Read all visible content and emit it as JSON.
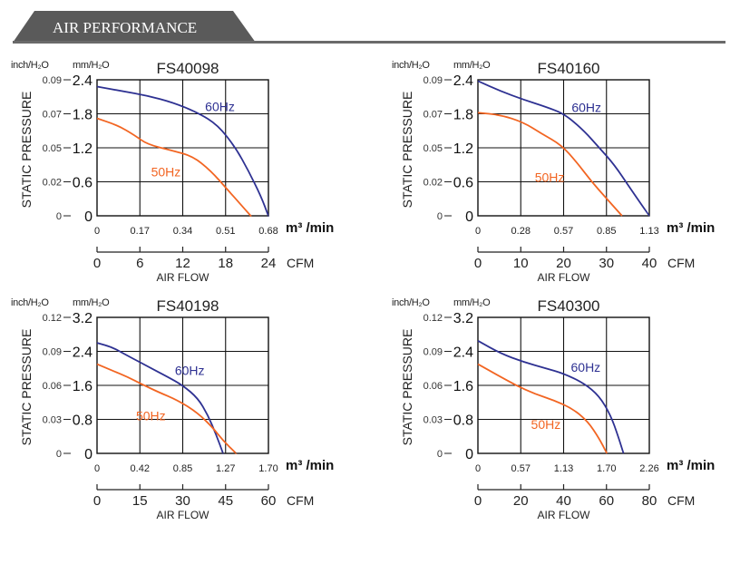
{
  "header": {
    "title": "AIR PERFORMANCE",
    "tab_color": "#5a5a5a",
    "rule_color": "#6a6a6a"
  },
  "labels": {
    "y_unit_inch": "inch/H₂O",
    "y_unit_mm": "mm/H₂O",
    "y_axis": "STATIC PRESSURE",
    "x_unit_m3": "m³ /min",
    "x_unit_cfm": "CFM",
    "x_axis": "AIR FLOW"
  },
  "colors": {
    "60Hz": "#2e3192",
    "50Hz": "#f26522",
    "grid": "#111111"
  },
  "chart_data": [
    {
      "type": "line",
      "title": "FS40098",
      "ylabel": "STATIC PRESSURE",
      "xlabel": "AIR FLOW",
      "y_ticks_mm": [
        "0",
        "0.6",
        "1.2",
        "1.8",
        "2.4"
      ],
      "y_ticks_inch": [
        "0",
        "0.02",
        "0.05",
        "0.07",
        "0.09"
      ],
      "x_ticks_m3min": [
        "0",
        "0.17",
        "0.34",
        "0.51",
        "0.68"
      ],
      "x_ticks_cfm": [
        "0",
        "6",
        "12",
        "18",
        "24"
      ],
      "xlim": [
        0,
        0.68
      ],
      "ylim": [
        0,
        2.4
      ],
      "grid": true,
      "series": [
        {
          "name": "60Hz",
          "x": [
            0,
            0.1,
            0.2,
            0.3,
            0.4,
            0.48,
            0.55,
            0.6,
            0.65,
            0.68
          ],
          "y": [
            2.28,
            2.2,
            2.12,
            2.0,
            1.82,
            1.6,
            1.2,
            0.8,
            0.35,
            0
          ]
        },
        {
          "name": "50Hz",
          "x": [
            0,
            0.08,
            0.15,
            0.2,
            0.3,
            0.38,
            0.45,
            0.52,
            0.57,
            0.61
          ],
          "y": [
            1.72,
            1.6,
            1.42,
            1.26,
            1.15,
            1.05,
            0.8,
            0.45,
            0.2,
            0
          ]
        }
      ]
    },
    {
      "type": "line",
      "title": "FS40160",
      "ylabel": "STATIC PRESSURE",
      "xlabel": "AIR FLOW",
      "y_ticks_mm": [
        "0",
        "0.6",
        "1.2",
        "1.8",
        "2.4"
      ],
      "y_ticks_inch": [
        "0",
        "0.02",
        "0.05",
        "0.07",
        "0.09"
      ],
      "x_ticks_m3min": [
        "0",
        "0.28",
        "0.57",
        "0.85",
        "1.13"
      ],
      "x_ticks_cfm": [
        "0",
        "10",
        "20",
        "30",
        "40"
      ],
      "xlim": [
        0,
        1.13
      ],
      "ylim": [
        0,
        2.4
      ],
      "grid": true,
      "series": [
        {
          "name": "60Hz",
          "x": [
            0,
            0.15,
            0.3,
            0.45,
            0.57,
            0.7,
            0.8,
            0.9,
            1.0,
            1.13
          ],
          "y": [
            2.38,
            2.2,
            2.05,
            1.92,
            1.8,
            1.5,
            1.2,
            0.9,
            0.5,
            0
          ]
        },
        {
          "name": "50Hz",
          "x": [
            0,
            0.15,
            0.3,
            0.42,
            0.55,
            0.65,
            0.75,
            0.85,
            0.95
          ],
          "y": [
            1.82,
            1.78,
            1.65,
            1.45,
            1.25,
            0.95,
            0.6,
            0.3,
            0
          ]
        }
      ]
    },
    {
      "type": "line",
      "title": "FS40198",
      "ylabel": "STATIC PRESSURE",
      "xlabel": "AIR FLOW",
      "y_ticks_mm": [
        "0",
        "0.8",
        "1.6",
        "2.4",
        "3.2"
      ],
      "y_ticks_inch": [
        "0",
        "0.03",
        "0.06",
        "0.09",
        "0.12"
      ],
      "x_ticks_m3min": [
        "0",
        "0.42",
        "0.85",
        "1.27",
        "1.70"
      ],
      "x_ticks_cfm": [
        "0",
        "15",
        "30",
        "45",
        "60"
      ],
      "xlim": [
        0,
        1.7
      ],
      "ylim": [
        0,
        3.2
      ],
      "grid": true,
      "series": [
        {
          "name": "60Hz",
          "x": [
            0,
            0.15,
            0.3,
            0.5,
            0.7,
            0.85,
            1.0,
            1.1,
            1.18,
            1.25
          ],
          "y": [
            2.6,
            2.5,
            2.3,
            2.05,
            1.8,
            1.6,
            1.3,
            0.9,
            0.45,
            0
          ]
        },
        {
          "name": "50Hz",
          "x": [
            0,
            0.15,
            0.3,
            0.45,
            0.6,
            0.8,
            1.0,
            1.15,
            1.25,
            1.38
          ],
          "y": [
            2.1,
            1.95,
            1.8,
            1.62,
            1.45,
            1.25,
            0.95,
            0.6,
            0.3,
            0
          ]
        }
      ]
    },
    {
      "type": "line",
      "title": "FS40300",
      "ylabel": "STATIC PRESSURE",
      "xlabel": "AIR FLOW",
      "y_ticks_mm": [
        "0",
        "0.8",
        "1.6",
        "2.4",
        "3.2"
      ],
      "y_ticks_inch": [
        "0",
        "0.03",
        "0.06",
        "0.09",
        "0.12"
      ],
      "x_ticks_m3min": [
        "0",
        "0.57",
        "1.13",
        "1.70",
        "2.26"
      ],
      "x_ticks_cfm": [
        "0",
        "20",
        "40",
        "60",
        "80"
      ],
      "xlim": [
        0,
        2.26
      ],
      "ylim": [
        0,
        3.2
      ],
      "grid": true,
      "series": [
        {
          "name": "60Hz",
          "x": [
            0,
            0.3,
            0.6,
            0.9,
            1.13,
            1.4,
            1.6,
            1.75,
            1.85,
            1.92
          ],
          "y": [
            2.65,
            2.35,
            2.15,
            2.0,
            1.88,
            1.65,
            1.35,
            0.9,
            0.4,
            0
          ]
        },
        {
          "name": "50Hz",
          "x": [
            0,
            0.25,
            0.5,
            0.75,
            1.0,
            1.25,
            1.45,
            1.6,
            1.7
          ],
          "y": [
            2.1,
            1.85,
            1.6,
            1.4,
            1.25,
            1.05,
            0.75,
            0.35,
            0
          ]
        }
      ]
    }
  ]
}
